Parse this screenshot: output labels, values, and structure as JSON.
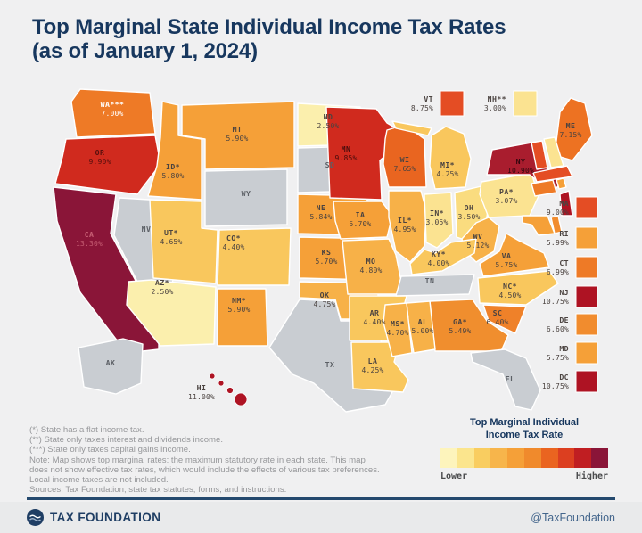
{
  "title": {
    "line1": "Top Marginal State Individual Income Tax Rates",
    "line2": "(as of January 1, 2024)"
  },
  "map": {
    "no_tax_color": "#C9CDD2",
    "states": {
      "WA": {
        "label": "WA***",
        "rate": "7.00%",
        "color": "#EE7A26",
        "label_color": "#FFFFFF"
      },
      "OR": {
        "label": "OR",
        "rate": "9.90%",
        "color": "#D02A1E",
        "label_color": "#58100E"
      },
      "CA": {
        "label": "CA",
        "rate": "13.30%",
        "color": "#8A1538",
        "label_color": "#C75F74"
      },
      "NV": {
        "label": "NV",
        "rate": "",
        "color": "#C9CDD2"
      },
      "ID": {
        "label": "ID*",
        "rate": "5.80%",
        "color": "#F5A038"
      },
      "MT": {
        "label": "MT",
        "rate": "5.90%",
        "color": "#F5A038"
      },
      "WY": {
        "label": "WY",
        "rate": "",
        "color": "#C9CDD2"
      },
      "UT": {
        "label": "UT*",
        "rate": "4.65%",
        "color": "#F9C75D"
      },
      "CO": {
        "label": "CO*",
        "rate": "4.40%",
        "color": "#F9C75D"
      },
      "AZ": {
        "label": "AZ*",
        "rate": "2.50%",
        "color": "#FBEFAD"
      },
      "NM": {
        "label": "NM*",
        "rate": "5.90%",
        "color": "#F5A038"
      },
      "ND": {
        "label": "ND",
        "rate": "2.50%",
        "color": "#FBEFAD"
      },
      "SD": {
        "label": "SD",
        "rate": "",
        "color": "#C9CDD2"
      },
      "NE": {
        "label": "NE",
        "rate": "5.84%",
        "color": "#F5A038"
      },
      "KS": {
        "label": "KS",
        "rate": "5.70%",
        "color": "#F5A038"
      },
      "OK": {
        "label": "OK",
        "rate": "4.75%",
        "color": "#F7B148"
      },
      "TX": {
        "label": "TX",
        "rate": "",
        "color": "#C9CDD2"
      },
      "MN": {
        "label": "MN",
        "rate": "9.85%",
        "color": "#D02A1E",
        "label_color": "#4A0C0C"
      },
      "IA": {
        "label": "IA",
        "rate": "5.70%",
        "color": "#F5A038"
      },
      "MO": {
        "label": "MO",
        "rate": "4.80%",
        "color": "#F7B148"
      },
      "AR": {
        "label": "AR",
        "rate": "4.40%",
        "color": "#F9C75D"
      },
      "LA": {
        "label": "LA",
        "rate": "4.25%",
        "color": "#F9C75D"
      },
      "WI": {
        "label": "WI",
        "rate": "7.65%",
        "color": "#E96520"
      },
      "MI": {
        "label": "MI*",
        "rate": "4.25%",
        "color": "#F9C75D"
      },
      "IL": {
        "label": "IL*",
        "rate": "4.95%",
        "color": "#F7B148"
      },
      "IN": {
        "label": "IN*",
        "rate": "3.05%",
        "color": "#FBE391"
      },
      "OH": {
        "label": "OH",
        "rate": "3.50%",
        "color": "#FADC7F"
      },
      "PA": {
        "label": "PA*",
        "rate": "3.07%",
        "color": "#FBE391"
      },
      "NY": {
        "label": "NY",
        "rate": "10.90%",
        "color": "#A91D2E",
        "label_color": "#30060E"
      },
      "ME": {
        "label": "ME",
        "rate": "7.15%",
        "color": "#ED7222"
      },
      "VT": {
        "label": "VT",
        "rate": "8.75%",
        "color": "#E44D24"
      },
      "NH": {
        "label": "NH**",
        "rate": "3.00%",
        "color": "#FBE391"
      },
      "MA": {
        "label": "MA",
        "rate": "9.00%",
        "color": "#E44D24"
      },
      "RI": {
        "label": "RI",
        "rate": "5.99%",
        "color": "#F5A038"
      },
      "CT": {
        "label": "CT",
        "rate": "6.99%",
        "color": "#EE7A26"
      },
      "NJ": {
        "label": "NJ",
        "rate": "10.75%",
        "color": "#AE1323"
      },
      "DE": {
        "label": "DE",
        "rate": "6.60%",
        "color": "#F18C2E"
      },
      "MD": {
        "label": "MD",
        "rate": "5.75%",
        "color": "#F5A038"
      },
      "DC": {
        "label": "DC",
        "rate": "10.75%",
        "color": "#AE1323"
      },
      "WV": {
        "label": "WV",
        "rate": "5.12%",
        "color": "#F7B148"
      },
      "VA": {
        "label": "VA",
        "rate": "5.75%",
        "color": "#F5A038"
      },
      "KY": {
        "label": "KY*",
        "rate": "4.00%",
        "color": "#F9C75D"
      },
      "TN": {
        "label": "TN",
        "rate": "",
        "color": "#C9CDD2"
      },
      "NC": {
        "label": "NC*",
        "rate": "4.50%",
        "color": "#F9C75D"
      },
      "SC": {
        "label": "SC",
        "rate": "6.40%",
        "color": "#EF8129"
      },
      "GA": {
        "label": "GA*",
        "rate": "5.49%",
        "color": "#F08E2E"
      },
      "AL": {
        "label": "AL",
        "rate": "5.00%",
        "color": "#F7B148"
      },
      "MS": {
        "label": "MS*",
        "rate": "4.70%",
        "color": "#F7B148"
      },
      "FL": {
        "label": "FL",
        "rate": "",
        "color": "#C9CDD2"
      },
      "AK": {
        "label": "AK",
        "rate": "",
        "color": "#C9CDD2"
      },
      "HI": {
        "label": "HI",
        "rate": "11.00%",
        "color": "#AE1323"
      }
    },
    "callouts_top": [
      "VT",
      "NH"
    ],
    "callouts_right": [
      "MA",
      "RI",
      "CT",
      "NJ",
      "DE",
      "MD",
      "DC"
    ]
  },
  "legend": {
    "title_line1": "Top Marginal Individual",
    "title_line2": "Income Tax Rate",
    "lower": "Lower",
    "higher": "Higher",
    "swatches": [
      "#FDF4BC",
      "#FBE58D",
      "#F9CD60",
      "#F7B54B",
      "#F5A038",
      "#F08A2C",
      "#EA6420",
      "#DC3F20",
      "#C01E22",
      "#8A1538"
    ]
  },
  "footnotes": [
    "(*) State has a flat income tax.",
    "(**) State only taxes interest and dividends income.",
    "(***) State only taxes capital gains income.",
    "Note: Map shows top marginal rates: the maximum statutory rate in each state. This map",
    "does not show effective tax rates, which would include the effects of various tax preferences.",
    "Local income taxes are not included.",
    "Sources: Tax Foundation; state tax statutes, forms, and instructions."
  ],
  "footer": {
    "brand": "TAX FOUNDATION",
    "handle": "@TaxFoundation"
  },
  "chart_data": {
    "type": "heatmap",
    "title": "Top Marginal State Individual Income Tax Rates (as of January 1, 2024)",
    "unit": "percent",
    "legend": {
      "label": "Top Marginal Individual Income Tax Rate",
      "low": "Lower",
      "high": "Higher"
    },
    "values": {
      "WA": 7.0,
      "OR": 9.9,
      "CA": 13.3,
      "NV": null,
      "ID": 5.8,
      "MT": 5.9,
      "WY": null,
      "UT": 4.65,
      "CO": 4.4,
      "AZ": 2.5,
      "NM": 5.9,
      "ND": 2.5,
      "SD": null,
      "NE": 5.84,
      "KS": 5.7,
      "OK": 4.75,
      "TX": null,
      "MN": 9.85,
      "IA": 5.7,
      "MO": 4.8,
      "AR": 4.4,
      "LA": 4.25,
      "WI": 7.65,
      "MI": 4.25,
      "IL": 4.95,
      "IN": 3.05,
      "OH": 3.5,
      "PA": 3.07,
      "NY": 10.9,
      "ME": 7.15,
      "VT": 8.75,
      "NH": 3.0,
      "MA": 9.0,
      "RI": 5.99,
      "CT": 6.99,
      "NJ": 10.75,
      "DE": 6.6,
      "MD": 5.75,
      "DC": 10.75,
      "WV": 5.12,
      "VA": 5.75,
      "KY": 4.0,
      "TN": null,
      "NC": 4.5,
      "SC": 6.4,
      "GA": 5.49,
      "AL": 5.0,
      "MS": 4.7,
      "FL": null,
      "AK": null,
      "HI": 11.0
    },
    "flags": {
      "flat_income_tax": [
        "AZ",
        "CO",
        "GA",
        "ID",
        "IL",
        "IN",
        "KY",
        "MI",
        "MS",
        "NC",
        "NM",
        "PA",
        "UT"
      ],
      "interest_dividends_only": [
        "NH"
      ],
      "capital_gains_only": [
        "WA"
      ],
      "no_income_tax": [
        "NV",
        "WY",
        "SD",
        "TX",
        "TN",
        "FL",
        "AK"
      ]
    }
  }
}
